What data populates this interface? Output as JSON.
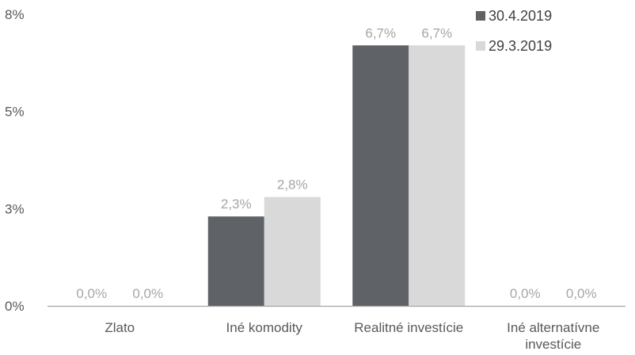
{
  "chart_data": {
    "type": "bar",
    "categories": [
      [
        "Zlato"
      ],
      [
        "Iné komodity"
      ],
      [
        "Realitné investície"
      ],
      [
        "Iné alternatívne",
        "investície"
      ]
    ],
    "series": [
      {
        "name": "30.4.2019",
        "color": "#5f6266",
        "values": [
          0.0,
          2.3,
          6.7,
          0.0
        ],
        "labels": [
          "0,0%",
          "2,3%",
          "6,7%",
          "0,0%"
        ]
      },
      {
        "name": "29.3.2019",
        "color": "#d9d9d9",
        "values": [
          0.0,
          2.8,
          6.7,
          0.0
        ],
        "labels": [
          "0,0%",
          "2,8%",
          "6,7%",
          "0,0%"
        ]
      }
    ],
    "y_ticks": [
      {
        "value": 0,
        "label": "0%"
      },
      {
        "value": 2.5,
        "label": "3%"
      },
      {
        "value": 5,
        "label": "5%"
      },
      {
        "value": 7.5,
        "label": "8%"
      }
    ],
    "ylim": [
      0,
      7.5
    ],
    "grid": false,
    "legend_position": "top-right",
    "title": "",
    "xlabel": "",
    "ylabel": "",
    "axis_color": "#a6a6a6"
  }
}
